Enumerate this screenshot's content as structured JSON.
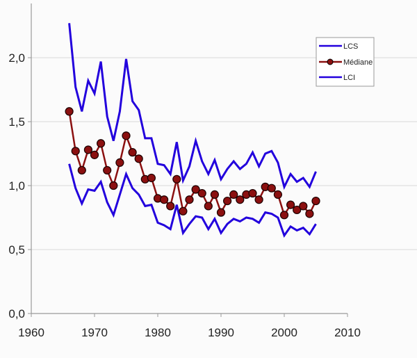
{
  "chart_data": {
    "type": "line",
    "title": "",
    "xlabel": "",
    "ylabel": "",
    "xlim": [
      1960,
      2010
    ],
    "ylim": [
      0.0,
      2.3
    ],
    "x_ticks": [
      "1960",
      "1970",
      "1980",
      "1990",
      "2000",
      "2010"
    ],
    "y_ticks": [
      "0,0",
      "0,5",
      "1,0",
      "1,5",
      "2,0"
    ],
    "grid": "horizontal",
    "legend_position": "upper right",
    "x": [
      1966,
      1967,
      1968,
      1969,
      1970,
      1971,
      1972,
      1973,
      1974,
      1975,
      1976,
      1977,
      1978,
      1979,
      1980,
      1981,
      1982,
      1983,
      1984,
      1985,
      1986,
      1987,
      1988,
      1989,
      1990,
      1991,
      1992,
      1993,
      1994,
      1995,
      1996,
      1997,
      1998,
      1999,
      2000,
      2001,
      2002,
      2003,
      2004,
      2005
    ],
    "series": [
      {
        "name": "LCS",
        "color": "#2200dd",
        "marker": "none",
        "values": [
          2.27,
          1.77,
          1.58,
          1.82,
          1.72,
          1.97,
          1.54,
          1.35,
          1.58,
          1.99,
          1.66,
          1.59,
          1.37,
          1.37,
          1.17,
          1.16,
          1.09,
          1.34,
          1.04,
          1.15,
          1.35,
          1.19,
          1.09,
          1.2,
          1.05,
          1.13,
          1.19,
          1.13,
          1.17,
          1.26,
          1.15,
          1.25,
          1.27,
          1.18,
          0.99,
          1.09,
          1.03,
          1.06,
          0.99,
          1.11
        ]
      },
      {
        "name": "Médiane",
        "color": "#8b1010",
        "marker": "circle",
        "values": [
          1.58,
          1.27,
          1.12,
          1.28,
          1.24,
          1.33,
          1.12,
          1.0,
          1.18,
          1.39,
          1.26,
          1.21,
          1.05,
          1.06,
          0.9,
          0.89,
          0.84,
          1.05,
          0.8,
          0.89,
          0.97,
          0.94,
          0.84,
          0.93,
          0.79,
          0.88,
          0.93,
          0.89,
          0.93,
          0.94,
          0.89,
          0.99,
          0.98,
          0.93,
          0.77,
          0.85,
          0.81,
          0.84,
          0.78,
          0.88
        ]
      },
      {
        "name": "LCI",
        "color": "#2200dd",
        "marker": "none",
        "values": [
          1.17,
          0.98,
          0.86,
          0.97,
          0.96,
          1.03,
          0.87,
          0.77,
          0.93,
          1.09,
          0.98,
          0.93,
          0.84,
          0.85,
          0.71,
          0.69,
          0.66,
          0.85,
          0.63,
          0.7,
          0.76,
          0.75,
          0.66,
          0.74,
          0.63,
          0.7,
          0.74,
          0.72,
          0.75,
          0.74,
          0.71,
          0.79,
          0.78,
          0.75,
          0.61,
          0.68,
          0.65,
          0.67,
          0.62,
          0.7
        ]
      }
    ]
  },
  "legend": {
    "items": [
      {
        "label": "LCS"
      },
      {
        "label": "Médiane"
      },
      {
        "label": "LCI"
      }
    ]
  }
}
